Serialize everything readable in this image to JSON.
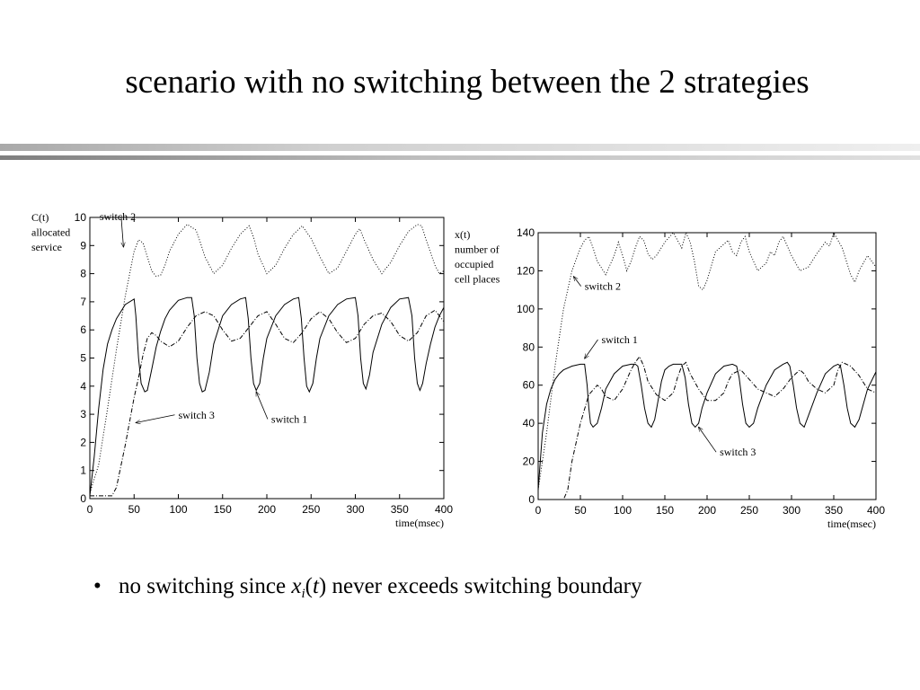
{
  "title": "scenario with no switching between the 2 strategies",
  "bullet": {
    "symbol": "•",
    "prefix": "no switching since ",
    "var_letter": "x",
    "var_sub": "i",
    "var_paren_open": "(",
    "var_arg": "t",
    "var_paren_close": ")",
    "suffix": " never exceeds switching boundary"
  },
  "chart_data": [
    {
      "type": "line",
      "ylabel": [
        "C(t)",
        "allocated",
        "service"
      ],
      "xlabel": "time(msec)",
      "xlim": [
        0,
        400
      ],
      "ylim": [
        0,
        10
      ],
      "xticks": [
        "0",
        "50",
        "100",
        "150",
        "200",
        "250",
        "300",
        "350",
        "400"
      ],
      "yticks": [
        "0",
        "1",
        "2",
        "3",
        "4",
        "5",
        "6",
        "7",
        "8",
        "9",
        "10"
      ],
      "grid": false,
      "annotations": [
        {
          "text": "switch 2",
          "label_at": [
            11,
            9.9
          ],
          "arrow_to": [
            38,
            8.95
          ]
        },
        {
          "text": "switch 3",
          "label_at": [
            100,
            2.85
          ],
          "arrow_to": [
            52,
            2.7
          ]
        },
        {
          "text": "switch 1",
          "label_at": [
            205,
            2.7
          ],
          "arrow_to": [
            188,
            3.8
          ]
        }
      ],
      "series": [
        {
          "style": "dotted",
          "x": [
            0,
            10,
            20,
            30,
            40,
            50,
            55,
            60,
            65,
            70,
            75,
            80,
            85,
            90,
            100,
            110,
            120,
            125,
            130,
            140,
            150,
            160,
            170,
            180,
            185,
            190,
            200,
            210,
            220,
            230,
            240,
            250,
            260,
            270,
            280,
            290,
            300,
            305,
            310,
            320,
            330,
            340,
            350,
            360,
            370,
            375,
            380,
            390,
            395,
            400
          ],
          "y": [
            0.2,
            1.2,
            3.2,
            5.3,
            7.2,
            8.8,
            9.2,
            9.1,
            8.6,
            8.1,
            7.9,
            7.95,
            8.3,
            8.8,
            9.4,
            9.75,
            9.55,
            9.1,
            8.6,
            8.0,
            8.3,
            8.9,
            9.4,
            9.7,
            9.3,
            8.7,
            8.0,
            8.3,
            8.9,
            9.4,
            9.7,
            9.25,
            8.6,
            8.0,
            8.2,
            8.8,
            9.4,
            9.6,
            9.2,
            8.5,
            8.0,
            8.4,
            9.0,
            9.5,
            9.75,
            9.7,
            9.2,
            8.3,
            8.0,
            8.1
          ]
        },
        {
          "style": "solid",
          "x": [
            0,
            5,
            10,
            15,
            20,
            25,
            30,
            40,
            50,
            52,
            55,
            58,
            62,
            65,
            70,
            75,
            80,
            85,
            90,
            100,
            110,
            115,
            118,
            121,
            124,
            127,
            130,
            135,
            140,
            150,
            160,
            170,
            176,
            179,
            182,
            185,
            188,
            192,
            196,
            200,
            210,
            220,
            230,
            236,
            239,
            242,
            245,
            248,
            252,
            256,
            260,
            270,
            280,
            290,
            300,
            303,
            306,
            309,
            312,
            316,
            320,
            330,
            340,
            350,
            360,
            364,
            367,
            370,
            373,
            376,
            380,
            385,
            390,
            395,
            400
          ],
          "y": [
            0.1,
            1.5,
            3.2,
            4.6,
            5.5,
            6.0,
            6.4,
            6.9,
            7.1,
            6.5,
            5.0,
            4.1,
            3.8,
            3.85,
            4.6,
            5.4,
            5.95,
            6.4,
            6.7,
            7.05,
            7.15,
            7.15,
            6.5,
            5.0,
            4.1,
            3.8,
            3.85,
            4.5,
            5.5,
            6.5,
            6.9,
            7.1,
            7.15,
            6.4,
            5.0,
            4.1,
            3.85,
            4.1,
            5.0,
            5.7,
            6.5,
            6.9,
            7.1,
            7.15,
            6.4,
            5.0,
            4.0,
            3.8,
            4.1,
            5.0,
            5.7,
            6.5,
            6.9,
            7.1,
            7.15,
            6.5,
            5.0,
            4.1,
            3.9,
            4.4,
            5.2,
            6.2,
            6.8,
            7.1,
            7.15,
            6.5,
            5.0,
            4.1,
            3.85,
            4.1,
            4.8,
            5.5,
            6.1,
            6.5,
            6.8
          ]
        },
        {
          "style": "dashdot",
          "x": [
            0,
            10,
            20,
            25,
            30,
            40,
            50,
            55,
            60,
            65,
            70,
            75,
            80,
            90,
            100,
            110,
            120,
            130,
            140,
            150,
            160,
            170,
            180,
            190,
            200,
            210,
            220,
            230,
            240,
            250,
            260,
            270,
            280,
            290,
            300,
            310,
            320,
            330,
            340,
            350,
            360,
            370,
            380,
            390,
            400
          ],
          "y": [
            0.1,
            0.1,
            0.1,
            0.1,
            0.4,
            1.9,
            3.6,
            4.3,
            5.1,
            5.7,
            5.9,
            5.8,
            5.6,
            5.4,
            5.6,
            6.1,
            6.5,
            6.65,
            6.5,
            6.0,
            5.6,
            5.7,
            6.1,
            6.5,
            6.65,
            6.2,
            5.7,
            5.55,
            5.9,
            6.4,
            6.65,
            6.4,
            5.9,
            5.55,
            5.7,
            6.2,
            6.5,
            6.6,
            6.3,
            5.8,
            5.6,
            5.9,
            6.5,
            6.7,
            6.3
          ]
        }
      ]
    },
    {
      "type": "line",
      "ylabel": [
        "x(t)",
        "number of",
        "occupied",
        "cell places"
      ],
      "xlabel": "time(msec)",
      "xlim": [
        0,
        400
      ],
      "ylim": [
        0,
        140
      ],
      "xticks": [
        "0",
        "50",
        "100",
        "150",
        "200",
        "250",
        "300",
        "350",
        "400"
      ],
      "yticks": [
        "0",
        "20",
        "40",
        "60",
        "80",
        "100",
        "120",
        "140"
      ],
      "grid": false,
      "annotations": [
        {
          "text": "switch 2",
          "label_at": [
            55,
            110
          ],
          "arrow_to": [
            42,
            117
          ]
        },
        {
          "text": "switch 1",
          "label_at": [
            75,
            82
          ],
          "arrow_to": [
            55,
            74
          ]
        },
        {
          "text": "switch 3",
          "label_at": [
            215,
            23
          ],
          "arrow_to": [
            190,
            38
          ]
        }
      ],
      "series": [
        {
          "style": "dotted",
          "x": [
            0,
            10,
            20,
            30,
            40,
            50,
            55,
            60,
            65,
            70,
            80,
            90,
            95,
            100,
            105,
            110,
            115,
            120,
            125,
            130,
            135,
            140,
            150,
            160,
            165,
            170,
            175,
            180,
            185,
            190,
            195,
            200,
            210,
            220,
            225,
            230,
            235,
            240,
            245,
            250,
            260,
            270,
            275,
            280,
            285,
            290,
            300,
            310,
            320,
            330,
            340,
            345,
            350,
            355,
            360,
            370,
            375,
            380,
            390,
            400
          ],
          "y": [
            5,
            35,
            70,
            100,
            120,
            132,
            136,
            138,
            132,
            125,
            118,
            128,
            135,
            128,
            120,
            125,
            132,
            138,
            136,
            129,
            126,
            128,
            135,
            140,
            136,
            132,
            140,
            135,
            125,
            112,
            110,
            115,
            130,
            134,
            136,
            130,
            128,
            135,
            138,
            130,
            120,
            124,
            130,
            128,
            135,
            138,
            128,
            120,
            122,
            129,
            135,
            133,
            140,
            136,
            132,
            118,
            114,
            120,
            128,
            122
          ]
        },
        {
          "style": "solid",
          "x": [
            0,
            5,
            10,
            15,
            20,
            25,
            30,
            40,
            50,
            55,
            58,
            60,
            62,
            65,
            70,
            75,
            80,
            90,
            100,
            110,
            115,
            118,
            122,
            126,
            130,
            134,
            138,
            142,
            146,
            150,
            155,
            160,
            170,
            174,
            178,
            182,
            186,
            190,
            194,
            200,
            210,
            220,
            230,
            235,
            238,
            242,
            246,
            250,
            255,
            260,
            270,
            280,
            290,
            295,
            298,
            302,
            306,
            310,
            315,
            320,
            330,
            340,
            350,
            355,
            358,
            362,
            366,
            370,
            375,
            380,
            390,
            400
          ],
          "y": [
            5,
            35,
            50,
            58,
            63,
            66,
            68,
            70,
            71,
            71,
            60,
            48,
            40,
            38,
            40,
            48,
            58,
            66,
            70,
            71,
            71,
            70,
            60,
            48,
            40,
            38,
            42,
            52,
            62,
            68,
            70,
            71,
            71,
            64,
            50,
            40,
            38,
            40,
            48,
            56,
            66,
            70,
            71,
            70,
            64,
            50,
            40,
            38,
            40,
            48,
            60,
            68,
            71,
            72,
            70,
            60,
            48,
            40,
            38,
            44,
            56,
            66,
            70,
            71,
            70,
            60,
            48,
            40,
            38,
            42,
            58,
            67
          ]
        },
        {
          "style": "dashdot",
          "x": [
            0,
            20,
            30,
            35,
            40,
            50,
            60,
            70,
            75,
            80,
            90,
            100,
            110,
            115,
            120,
            125,
            130,
            140,
            150,
            160,
            165,
            170,
            175,
            180,
            190,
            200,
            210,
            220,
            225,
            230,
            240,
            250,
            260,
            270,
            280,
            290,
            300,
            310,
            315,
            320,
            330,
            340,
            350,
            355,
            360,
            370,
            380,
            390,
            400
          ],
          "y": [
            0,
            0,
            0,
            5,
            20,
            40,
            55,
            60,
            58,
            54,
            52,
            58,
            68,
            72,
            75,
            70,
            62,
            55,
            52,
            56,
            64,
            70,
            72,
            66,
            58,
            52,
            52,
            56,
            62,
            66,
            68,
            63,
            58,
            56,
            54,
            58,
            64,
            68,
            66,
            62,
            58,
            56,
            60,
            68,
            72,
            70,
            65,
            58,
            56
          ]
        }
      ]
    }
  ]
}
